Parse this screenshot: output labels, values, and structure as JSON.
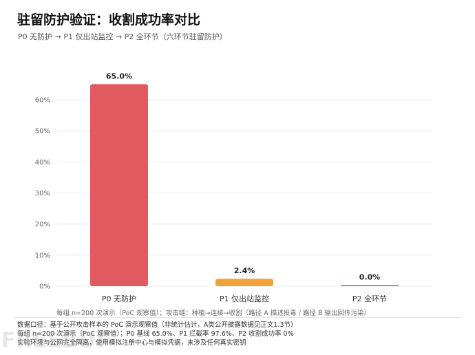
{
  "header": {
    "title": "驻留防护验证：收割成功率对比",
    "subtitle": "P0 无防护 → P1 仅出站监控 → P2 全环节（六环节驻留防护）"
  },
  "chart_data": {
    "type": "bar",
    "categories": [
      "P0 无防护",
      "P1 仅出站监控",
      "P2 全环节"
    ],
    "values": [
      65.0,
      2.4,
      0.0
    ],
    "value_labels": [
      "65.0%",
      "2.4%",
      "0.0%"
    ],
    "y_ticks": [
      0,
      10,
      20,
      30,
      40,
      50,
      60
    ],
    "y_tick_labels": [
      "0%",
      "10%",
      "20%",
      "30%",
      "40%",
      "50%",
      "60%"
    ],
    "ylim": [
      0,
      70
    ],
    "colors": [
      "#e05a5f",
      "#f2a23a",
      "#4a86b8"
    ],
    "grid": true,
    "legend": "none"
  },
  "note": "每组 n=200 次演示（PoC 观察值）；攻击链：种植→连接→收割（路径 A 描述投毒 / 路径 B 输出回传污染）",
  "footer": {
    "line1": "数据口径：基于公开攻击样本的 PoC 演示观察值（非统计估计，A类公开披露数据见正文1.3节）",
    "line2": "每组 n=200 次演示（PoC 观察值）；P0 基线 65.0%、P1 拦截率 97.6%、P2 收割成功率 0%",
    "line3": "实验环境与公网完全隔离，使用模拟注册中心与模拟凭据，未涉及任何真实密钥"
  },
  "watermark": "FREEBUF"
}
